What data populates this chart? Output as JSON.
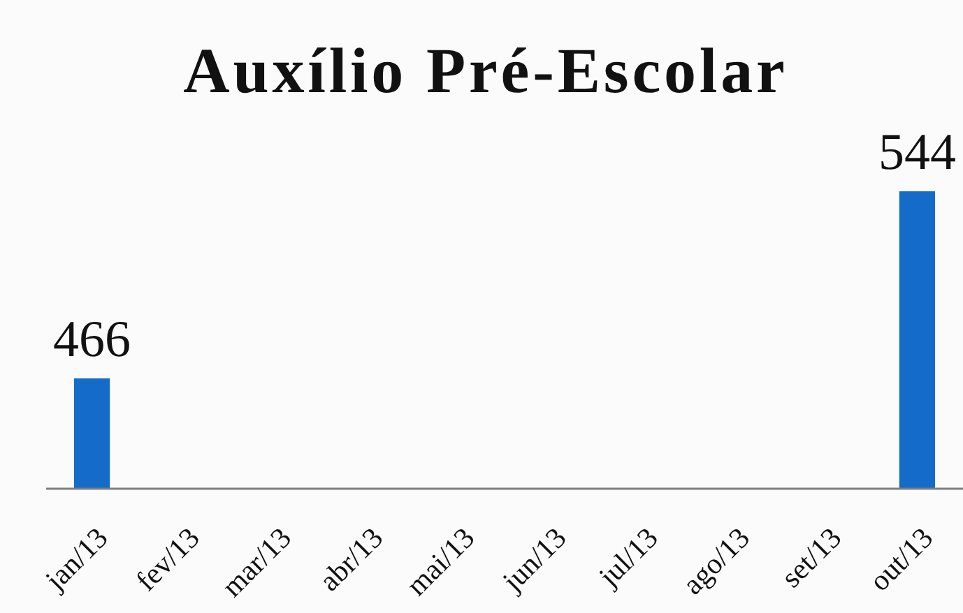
{
  "chart_data": {
    "type": "bar",
    "title": "Auxílio Pré-Escolar",
    "categories": [
      "jan/13",
      "fev/13",
      "mar/13",
      "abr/13",
      "mai/13",
      "jun/13",
      "jul/13",
      "ago/13",
      "set/13",
      "out/13"
    ],
    "values": [
      466,
      null,
      null,
      null,
      null,
      null,
      null,
      null,
      null,
      544
    ],
    "color": "#146cc8",
    "ylim": [
      420,
      544
    ],
    "data_labels": true,
    "tick_labels": "x"
  }
}
